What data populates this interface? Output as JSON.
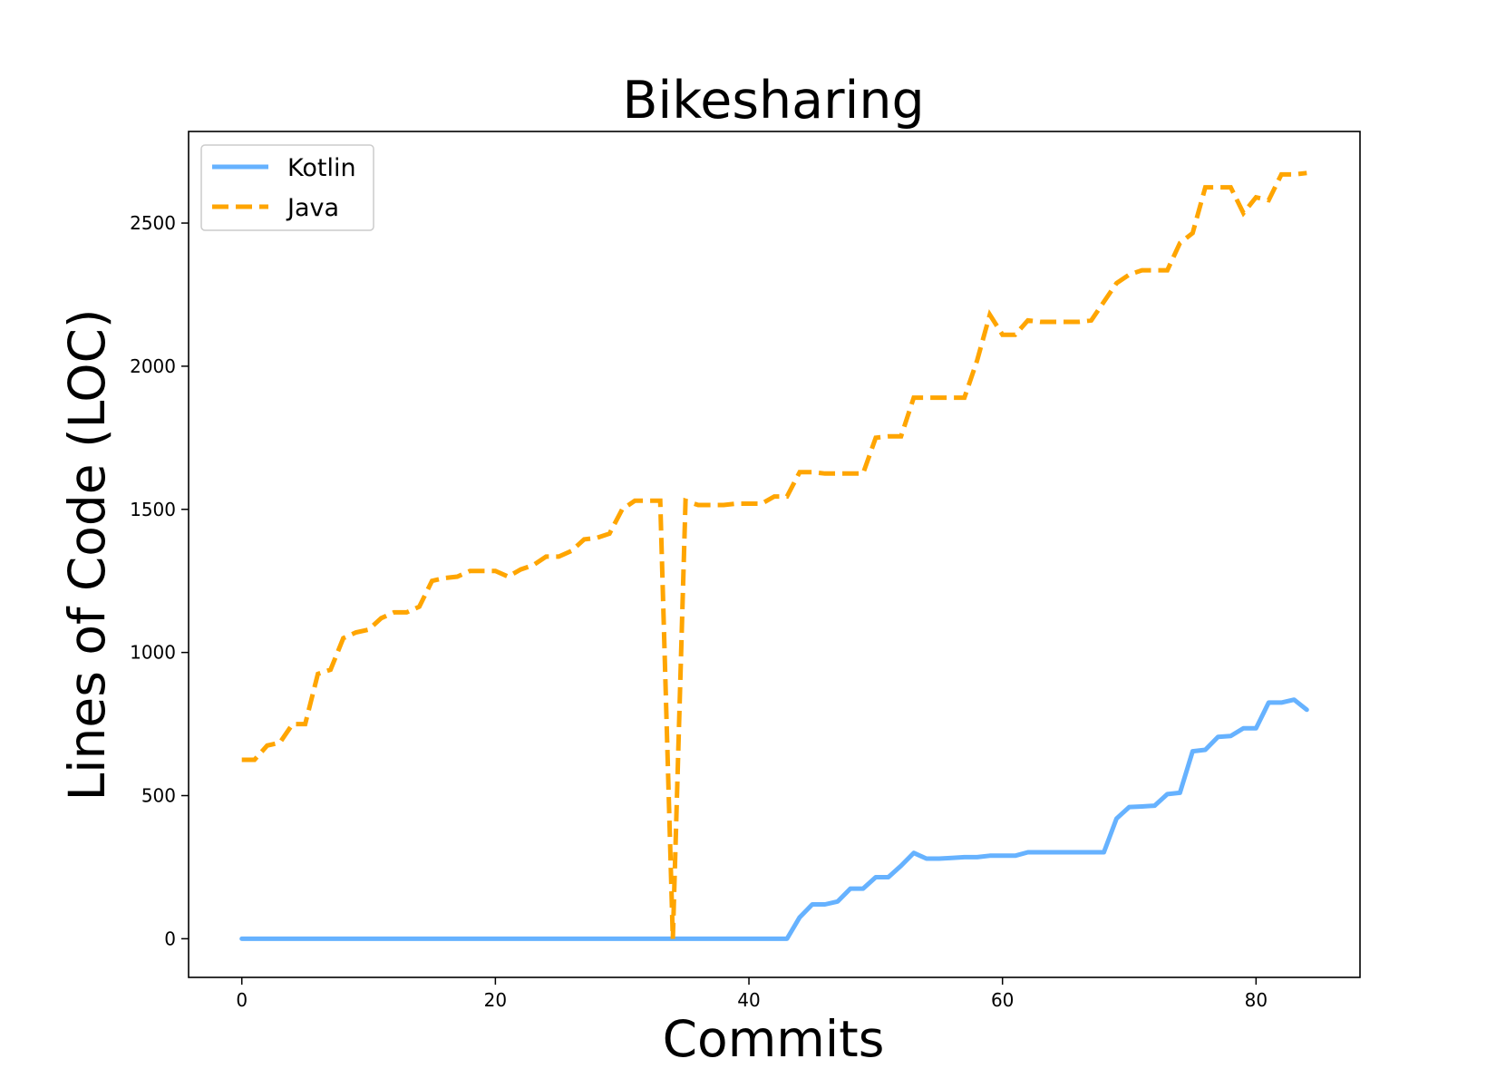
{
  "chart_data": {
    "type": "line",
    "title": "Bikesharing",
    "xlabel": "Commits",
    "ylabel": "Lines of Code (LOC)",
    "xlim": [
      -4.2,
      88.2
    ],
    "ylim": [
      -135,
      2820
    ],
    "xticks": [
      0,
      20,
      40,
      60,
      80
    ],
    "yticks": [
      0,
      500,
      1000,
      1500,
      2000,
      2500
    ],
    "legend": "top-left",
    "grid": false,
    "series": [
      {
        "name": "Kotlin",
        "color": "#66b2ff",
        "style": "solid",
        "x": [
          0,
          43,
          44,
          45,
          46,
          47,
          48,
          49,
          50,
          51,
          52,
          53,
          54,
          55,
          56,
          57,
          58,
          59,
          60,
          61,
          62,
          63,
          67,
          68,
          69,
          70,
          71,
          72,
          73,
          74,
          75,
          76,
          77,
          78,
          79,
          80,
          81,
          82,
          83,
          84
        ],
        "values": [
          0,
          0,
          75,
          120,
          120,
          130,
          175,
          175,
          215,
          215,
          255,
          300,
          280,
          280,
          282,
          285,
          285,
          290,
          290,
          290,
          302,
          302,
          302,
          302,
          420,
          460,
          462,
          465,
          505,
          510,
          655,
          660,
          705,
          708,
          735,
          735,
          825,
          825,
          835,
          800
        ]
      },
      {
        "name": "Java",
        "color": "#ffa500",
        "style": "dashed",
        "x": [
          0,
          1,
          2,
          3,
          4,
          5,
          6,
          7,
          8,
          9,
          10,
          11,
          12,
          13,
          14,
          15,
          16,
          17,
          18,
          19,
          20,
          21,
          22,
          23,
          24,
          25,
          26,
          27,
          28,
          29,
          30,
          31,
          32,
          33,
          34,
          35,
          36,
          37,
          38,
          39,
          40,
          41,
          42,
          43,
          44,
          45,
          46,
          47,
          48,
          49,
          50,
          51,
          52,
          53,
          54,
          55,
          56,
          57,
          58,
          59,
          60,
          61,
          62,
          63,
          64,
          65,
          66,
          67,
          68,
          69,
          70,
          71,
          72,
          73,
          74,
          75,
          76,
          77,
          78,
          79,
          80,
          81,
          82,
          83,
          84
        ],
        "values": [
          625,
          625,
          675,
          685,
          750,
          750,
          925,
          940,
          1050,
          1070,
          1080,
          1120,
          1140,
          1140,
          1160,
          1250,
          1260,
          1265,
          1285,
          1285,
          1285,
          1265,
          1290,
          1305,
          1335,
          1335,
          1355,
          1395,
          1400,
          1415,
          1500,
          1530,
          1530,
          1530,
          0,
          1530,
          1515,
          1515,
          1515,
          1520,
          1520,
          1520,
          1545,
          1545,
          1630,
          1630,
          1625,
          1625,
          1625,
          1625,
          1750,
          1755,
          1755,
          1890,
          1890,
          1890,
          1890,
          1890,
          2020,
          2180,
          2110,
          2110,
          2160,
          2155,
          2155,
          2155,
          2155,
          2160,
          2225,
          2290,
          2320,
          2335,
          2335,
          2335,
          2430,
          2465,
          2625,
          2625,
          2625,
          2535,
          2590,
          2580,
          2670,
          2670,
          2675
        ]
      }
    ]
  }
}
